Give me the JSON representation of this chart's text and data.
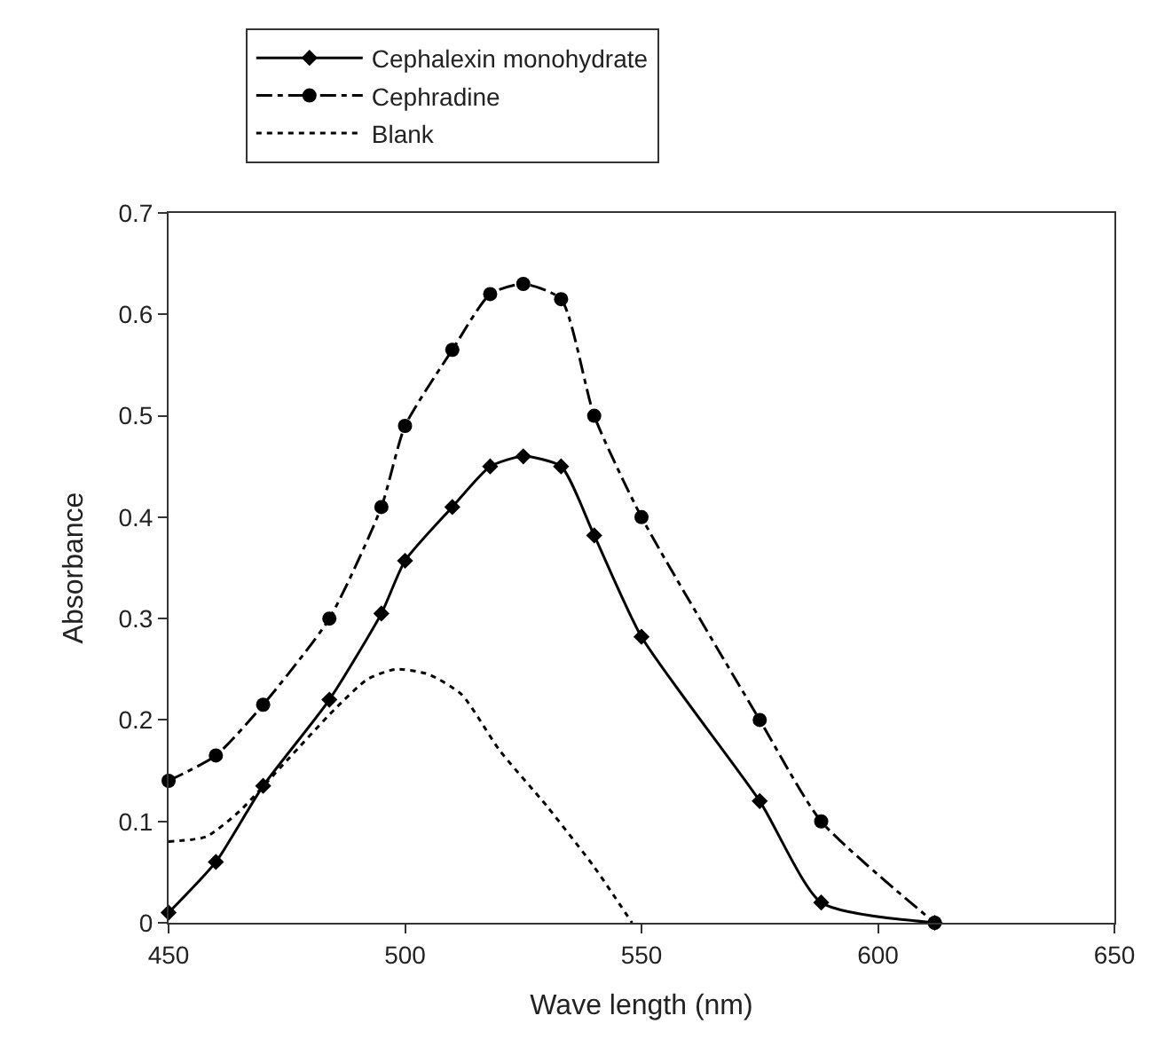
{
  "chart_data": {
    "type": "line",
    "xlabel": "Wave length (nm)",
    "ylabel": "Absorbance",
    "xlim": [
      450,
      650
    ],
    "xticks": [
      450,
      500,
      550,
      600,
      650
    ],
    "ylim": [
      0,
      0.7
    ],
    "yticks": [
      0,
      0.1,
      0.2,
      0.3,
      0.4,
      0.5,
      0.6,
      0.7
    ],
    "legend": "top",
    "series": [
      {
        "name": "Cephalexin monohydrate",
        "color": "#000000",
        "marker": "diamond",
        "line_style": "solid",
        "x": [
          450,
          460,
          470,
          484,
          495,
          500,
          510,
          518,
          525,
          533,
          540,
          550,
          575,
          588,
          612
        ],
        "values": [
          0.01,
          0.06,
          0.135,
          0.22,
          0.305,
          0.357,
          0.41,
          0.45,
          0.46,
          0.45,
          0.382,
          0.282,
          0.12,
          0.02,
          0.0
        ]
      },
      {
        "name": "Cephradine",
        "color": "#000000",
        "marker": "circle",
        "line_style": "dashed",
        "x": [
          450,
          460,
          470,
          484,
          495,
          500,
          510,
          518,
          525,
          533,
          540,
          550,
          575,
          588,
          612
        ],
        "values": [
          0.14,
          0.165,
          0.215,
          0.3,
          0.41,
          0.49,
          0.565,
          0.62,
          0.63,
          0.615,
          0.5,
          0.4,
          0.2,
          0.1,
          0.0
        ]
      },
      {
        "name": "Blank",
        "color": "#000000",
        "marker": "none",
        "line_style": "dotted",
        "x": [
          450,
          458,
          465,
          475,
          485,
          492,
          498,
          505,
          512,
          520,
          530,
          540,
          548
        ],
        "values": [
          0.08,
          0.085,
          0.11,
          0.16,
          0.21,
          0.24,
          0.25,
          0.245,
          0.225,
          0.17,
          0.115,
          0.055,
          0.0
        ]
      }
    ]
  }
}
